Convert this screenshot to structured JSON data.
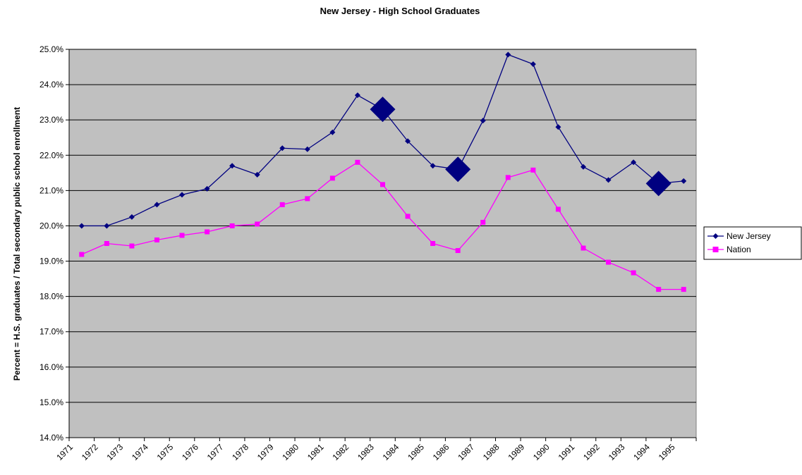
{
  "chart_data": {
    "type": "line",
    "title": "New Jersey - High School Graduates",
    "y_label": "Percent = H.S. graduates / Total secondary public school enrollment",
    "categories": [
      "1971",
      "1972",
      "1973",
      "1974",
      "1975",
      "1976",
      "1977",
      "1978",
      "1979",
      "1980",
      "1981",
      "1982",
      "1983",
      "1984",
      "1985",
      "1986",
      "1987",
      "1988",
      "1989",
      "1990",
      "1991",
      "1992",
      "1993",
      "1994",
      "1995"
    ],
    "series": [
      {
        "name": "New Jersey",
        "color": "#000080",
        "marker": "diamond",
        "highlighted_points": [
          12,
          15,
          23
        ],
        "values": [
          20.0,
          20.0,
          20.25,
          20.6,
          20.88,
          21.05,
          21.7,
          21.45,
          22.2,
          22.17,
          22.65,
          23.7,
          23.3,
          22.4,
          21.7,
          21.6,
          22.98,
          24.85,
          24.58,
          22.8,
          21.67,
          21.3,
          21.8,
          21.2,
          21.27
        ]
      },
      {
        "name": "Nation",
        "color": "#ff00ff",
        "marker": "square",
        "values": [
          19.19,
          19.5,
          19.43,
          19.6,
          19.73,
          19.83,
          20.0,
          20.05,
          20.6,
          20.77,
          21.35,
          21.8,
          21.17,
          20.27,
          19.5,
          19.3,
          20.1,
          21.37,
          21.58,
          20.47,
          19.37,
          18.97,
          18.67,
          18.2,
          18.2
        ]
      }
    ],
    "ylim": [
      14,
      25
    ],
    "yticks": [
      {
        "value": 14,
        "label": "14.0%"
      },
      {
        "value": 15,
        "label": "15.0%"
      },
      {
        "value": 16,
        "label": "16.0%"
      },
      {
        "value": 17,
        "label": "17.0%"
      },
      {
        "value": 18,
        "label": "18.0%"
      },
      {
        "value": 19,
        "label": "19.0%"
      },
      {
        "value": 20,
        "label": "20.0%"
      },
      {
        "value": 21,
        "label": "21.0%"
      },
      {
        "value": 22,
        "label": "22.0%"
      },
      {
        "value": 23,
        "label": "23.0%"
      },
      {
        "value": 24,
        "label": "24.0%"
      },
      {
        "value": 25,
        "label": "25.0%"
      }
    ],
    "grid": true,
    "legend": "right",
    "plot_background": "#c0c0c0"
  }
}
